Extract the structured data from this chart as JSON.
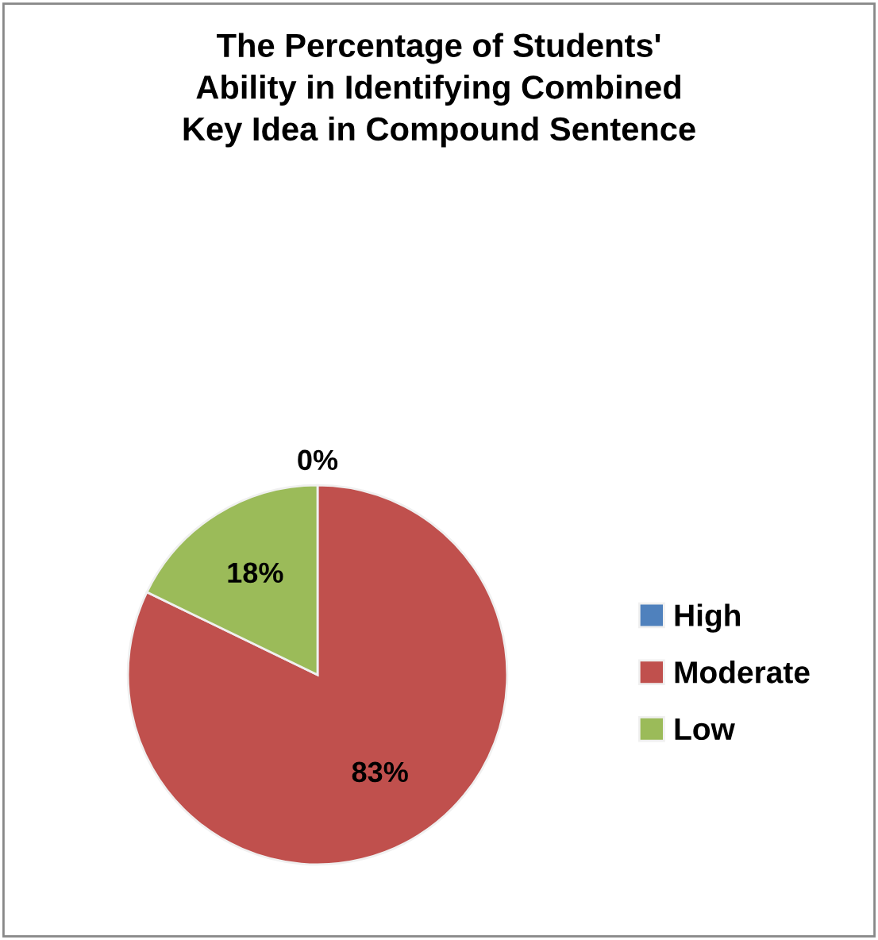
{
  "chart_data": {
    "type": "pie",
    "title": "The Percentage of Students'\nAbility in Identifying Combined\nKey Idea in Compound Sentence",
    "categories": [
      "High",
      "Moderate",
      "Low"
    ],
    "values": [
      0,
      83,
      18
    ],
    "colors": [
      "#4f81bd",
      "#c0504d",
      "#9bbb59"
    ],
    "value_labels": [
      "0%",
      "83%",
      "18%"
    ],
    "legend": "right"
  }
}
